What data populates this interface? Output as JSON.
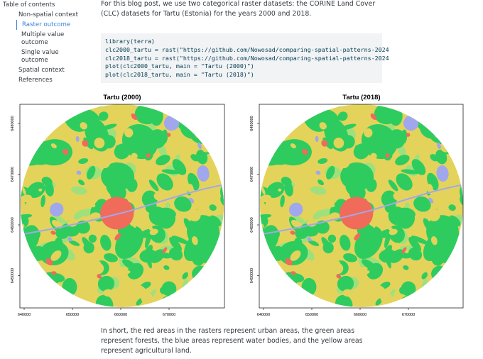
{
  "toc": {
    "title": "Table of contents",
    "items": [
      "Non-spatial context",
      "Raster outcome",
      "Multiple value outcome",
      "Single value outcome",
      "Spatial context",
      "References"
    ]
  },
  "paragraph": "For this blog post, we use two categorical raster datasets: the CORINE Land Cover (CLC) datasets for Tartu (Estonia) for the years 2000 and 2018.",
  "code": {
    "lines": [
      "library(terra)",
      "clc2000_tartu = rast(\"https://github.com/Nowosad/comparing-spatial-patterns-2024",
      "clc2018_tartu = rast(\"https://github.com/Nowosad/comparing-spatial-patterns-2024",
      "plot(clc2000_tartu, main = \"Tartu (2000)\")",
      "plot(clc2018_tartu, main = \"Tartu (2018)\")"
    ]
  },
  "plots": [
    {
      "title": "Tartu (2000)",
      "xticks": [
        "640000",
        "650000",
        "660000",
        "670000"
      ],
      "yticks": [
        "6480000",
        "6470000",
        "6460000",
        "6450000"
      ]
    },
    {
      "title": "Tartu (2018)",
      "xticks": [
        "640000",
        "650000",
        "660000",
        "670000"
      ],
      "yticks": [
        "6480000",
        "6470000",
        "6460000",
        "6450000"
      ]
    }
  ],
  "conclusion": "In short, the red areas in the rasters represent urban areas, the green areas represent forests, the blue areas represent water bodies, and the yellow areas represent agricultural land."
}
